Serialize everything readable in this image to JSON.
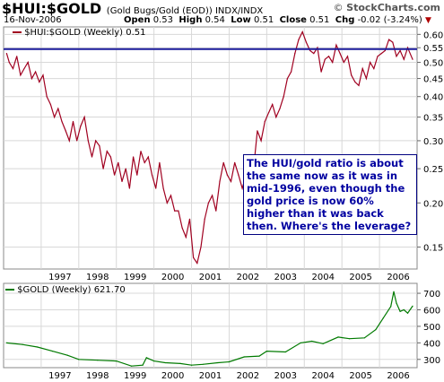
{
  "header": {
    "symbol": "$HUI:$GOLD",
    "description": "(Gold Bugs/Gold (EOD)) INDX/INDX",
    "date": "16-Nov-2006",
    "open_label": "Open",
    "open": "0.53",
    "high_label": "High",
    "high": "0.54",
    "low_label": "Low",
    "low": "0.51",
    "close_label": "Close",
    "close": "0.51",
    "chg_label": "Chg",
    "chg": "-0.02 (-3.24%)",
    "brand": "StockCharts.com",
    "brand_copyright": "©"
  },
  "chart_data": [
    {
      "type": "line",
      "legend": "$HUI:$GOLD (Weekly) 0.51",
      "scale": "log",
      "ylim": [
        0.13,
        0.63
      ],
      "y_ticks": [
        0.15,
        0.2,
        0.25,
        0.3,
        0.35,
        0.4,
        0.45,
        0.5,
        0.55,
        0.6
      ],
      "y_tick_labels": [
        "0.15",
        "0.20",
        "0.25",
        "0.30",
        "0.35",
        "0.40",
        "0.45",
        "0.50",
        "0.55",
        "0.60"
      ],
      "x_labels": [
        "1997",
        "1998",
        "1999",
        "2000",
        "2001",
        "2002",
        "2003",
        "2004",
        "2005",
        "2006"
      ],
      "reference_line": 0.545,
      "grid": true,
      "colors": {
        "line": "#a00020",
        "reference": "#1c1c9c"
      },
      "series": [
        {
          "x": [
            1996.08,
            1996.15,
            1996.25,
            1996.35,
            1996.45,
            1996.55,
            1996.65,
            1996.75,
            1996.85,
            1996.95,
            1997.05,
            1997.15,
            1997.25,
            1997.35,
            1997.45,
            1997.55,
            1997.65,
            1997.75,
            1997.85,
            1997.95,
            1998.05,
            1998.15,
            1998.25,
            1998.35,
            1998.45,
            1998.55,
            1998.65,
            1998.75,
            1998.85,
            1998.95,
            1999.05,
            1999.15,
            1999.25,
            1999.35,
            1999.45,
            1999.55,
            1999.65,
            1999.75,
            1999.85,
            1999.95,
            2000.05,
            2000.15,
            2000.25,
            2000.35,
            2000.45,
            2000.55,
            2000.65,
            2000.75,
            2000.85,
            2000.95,
            2001.05,
            2001.15,
            2001.25,
            2001.35,
            2001.45,
            2001.55,
            2001.65,
            2001.75,
            2001.85,
            2001.95,
            2002.05,
            2002.15,
            2002.25,
            2002.35,
            2002.45,
            2002.55,
            2002.65,
            2002.75,
            2002.85,
            2002.95,
            2003.05,
            2003.15,
            2003.25,
            2003.35,
            2003.45,
            2003.55,
            2003.65,
            2003.75,
            2003.85,
            2003.95,
            2004.05,
            2004.15,
            2004.25,
            2004.35,
            2004.45,
            2004.55,
            2004.65,
            2004.75,
            2004.85,
            2004.95,
            2005.05,
            2005.15,
            2005.25,
            2005.35,
            2005.45,
            2005.55,
            2005.65,
            2005.75,
            2005.85,
            2005.95,
            2006.05,
            2006.15,
            2006.25,
            2006.35,
            2006.45,
            2006.55,
            2006.65,
            2006.75,
            2006.88
          ],
          "y": [
            0.53,
            0.5,
            0.48,
            0.52,
            0.46,
            0.48,
            0.5,
            0.45,
            0.47,
            0.44,
            0.46,
            0.4,
            0.38,
            0.35,
            0.37,
            0.34,
            0.32,
            0.3,
            0.34,
            0.3,
            0.33,
            0.35,
            0.3,
            0.27,
            0.3,
            0.29,
            0.25,
            0.28,
            0.27,
            0.24,
            0.26,
            0.23,
            0.25,
            0.22,
            0.27,
            0.24,
            0.28,
            0.26,
            0.27,
            0.24,
            0.22,
            0.26,
            0.22,
            0.2,
            0.21,
            0.19,
            0.19,
            0.17,
            0.16,
            0.18,
            0.14,
            0.135,
            0.15,
            0.18,
            0.2,
            0.21,
            0.19,
            0.23,
            0.26,
            0.24,
            0.23,
            0.26,
            0.24,
            0.22,
            0.24,
            0.23,
            0.25,
            0.32,
            0.3,
            0.34,
            0.36,
            0.38,
            0.35,
            0.37,
            0.4,
            0.45,
            0.47,
            0.53,
            0.58,
            0.61,
            0.57,
            0.54,
            0.53,
            0.55,
            0.47,
            0.51,
            0.52,
            0.5,
            0.56,
            0.53,
            0.5,
            0.52,
            0.46,
            0.44,
            0.43,
            0.48,
            0.45,
            0.5,
            0.48,
            0.52,
            0.53,
            0.54,
            0.58,
            0.57,
            0.52,
            0.54,
            0.51,
            0.55,
            0.51
          ]
        }
      ]
    },
    {
      "type": "line",
      "legend": "$GOLD (Weekly) 621.70",
      "ylim": [
        250,
        760
      ],
      "y_ticks": [
        300,
        400,
        500,
        600,
        700
      ],
      "y_tick_labels": [
        "300",
        "400",
        "500",
        "600",
        "700"
      ],
      "x_labels": [
        "1997",
        "1998",
        "1999",
        "2000",
        "2001",
        "2002",
        "2003",
        "2004",
        "2005",
        "2006"
      ],
      "grid": true,
      "colors": {
        "line": "#007a00"
      },
      "series": [
        {
          "x": [
            1996.08,
            1996.5,
            1996.9,
            1997.3,
            1997.7,
            1998.0,
            1998.5,
            1999.0,
            1999.4,
            1999.7,
            1999.8,
            2000.0,
            2000.3,
            2000.7,
            2001.0,
            2001.3,
            2001.7,
            2002.0,
            2002.4,
            2002.8,
            2003.0,
            2003.5,
            2003.9,
            2004.2,
            2004.5,
            2004.9,
            2005.2,
            2005.6,
            2005.9,
            2006.1,
            2006.3,
            2006.38,
            2006.45,
            2006.55,
            2006.65,
            2006.75,
            2006.88
          ],
          "y": [
            400,
            390,
            375,
            350,
            325,
            300,
            295,
            290,
            260,
            265,
            310,
            290,
            280,
            275,
            265,
            270,
            280,
            285,
            315,
            320,
            350,
            345,
            400,
            410,
            395,
            435,
            425,
            430,
            480,
            550,
            620,
            710,
            640,
            590,
            600,
            580,
            622
          ]
        }
      ]
    }
  ],
  "annotation": {
    "text": "The HUI/gold ratio is about the same now as it was in mid-1996, even though the gold price is now 60% higher than it was back then. Where's the leverage?"
  }
}
